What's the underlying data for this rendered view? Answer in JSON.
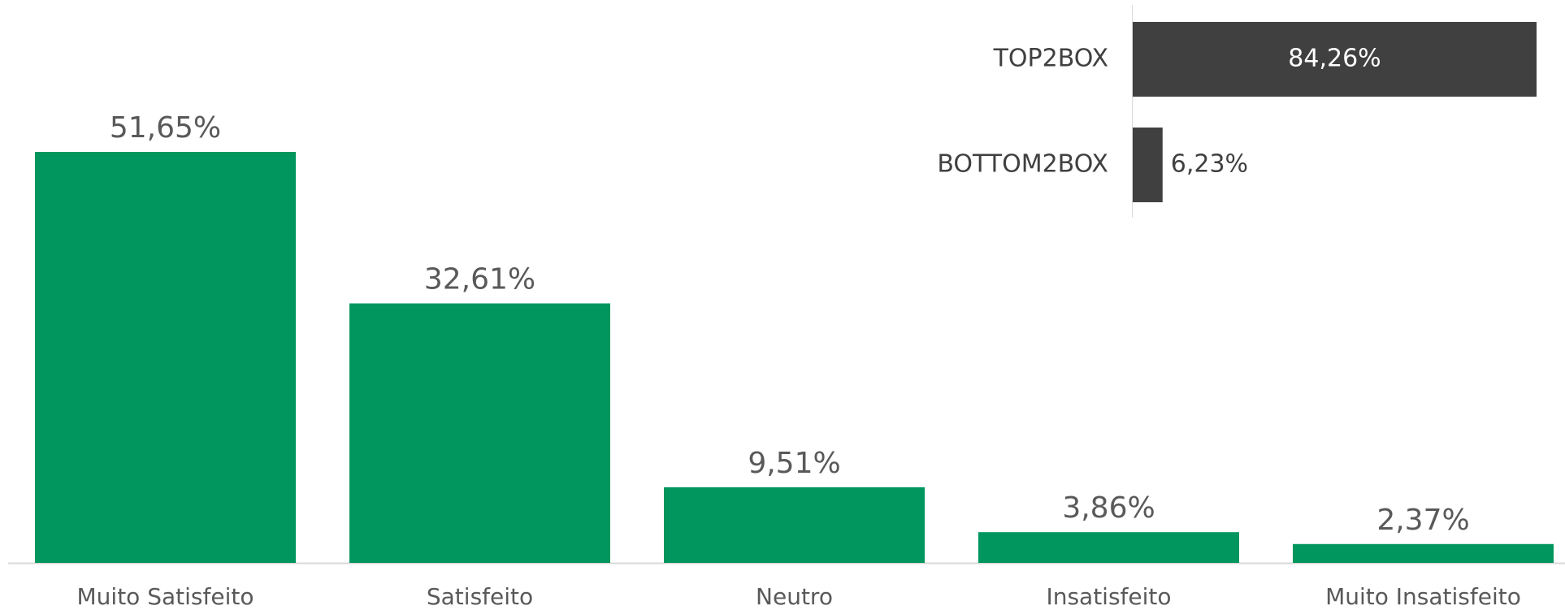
{
  "chart_data": [
    {
      "type": "bar",
      "categories": [
        "Muito Satisfeito",
        "Satisfeito",
        "Neutro",
        "Insatisfeito",
        "Muito Insatisfeito"
      ],
      "values": [
        51.65,
        32.61,
        9.51,
        3.86,
        2.37
      ],
      "value_labels": [
        "51,65%",
        "32,61%",
        "9,51%",
        "3,86%",
        "2,37%"
      ],
      "color": "#00965e"
    },
    {
      "type": "hbar",
      "categories": [
        "TOP2BOX",
        "BOTTOM2BOX"
      ],
      "values": [
        84.26,
        6.23
      ],
      "value_labels": [
        "84,26%",
        "6,23%"
      ],
      "color": "#404040"
    }
  ]
}
